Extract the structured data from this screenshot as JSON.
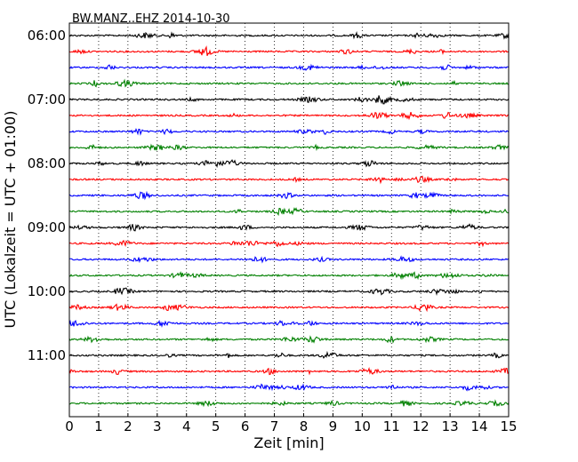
{
  "chart_data": {
    "type": "line",
    "title": "BW.MANZ..EHZ 2014-10-30",
    "xlabel": "Zeit  [min]",
    "ylabel": "UTC (Lokalzeit = UTC + 01:00)",
    "xlim": [
      0,
      15
    ],
    "x_ticks": [
      "0",
      "1",
      "2",
      "3",
      "4",
      "5",
      "6",
      "7",
      "8",
      "9",
      "10",
      "11",
      "12",
      "13",
      "14",
      "15"
    ],
    "y_ticks": [
      "06:00",
      "07:00",
      "08:00",
      "09:00",
      "10:00",
      "11:00"
    ],
    "grid": "vertical-dotted",
    "colors": [
      "#000000",
      "#ff0000",
      "#0000ff",
      "#008000"
    ],
    "trace_offsets_min": [
      0,
      15,
      30,
      45,
      60,
      75,
      90,
      105,
      120,
      135,
      150,
      165,
      180,
      195,
      210,
      225,
      240,
      255,
      270,
      285,
      300,
      315,
      330,
      345
    ]
  }
}
